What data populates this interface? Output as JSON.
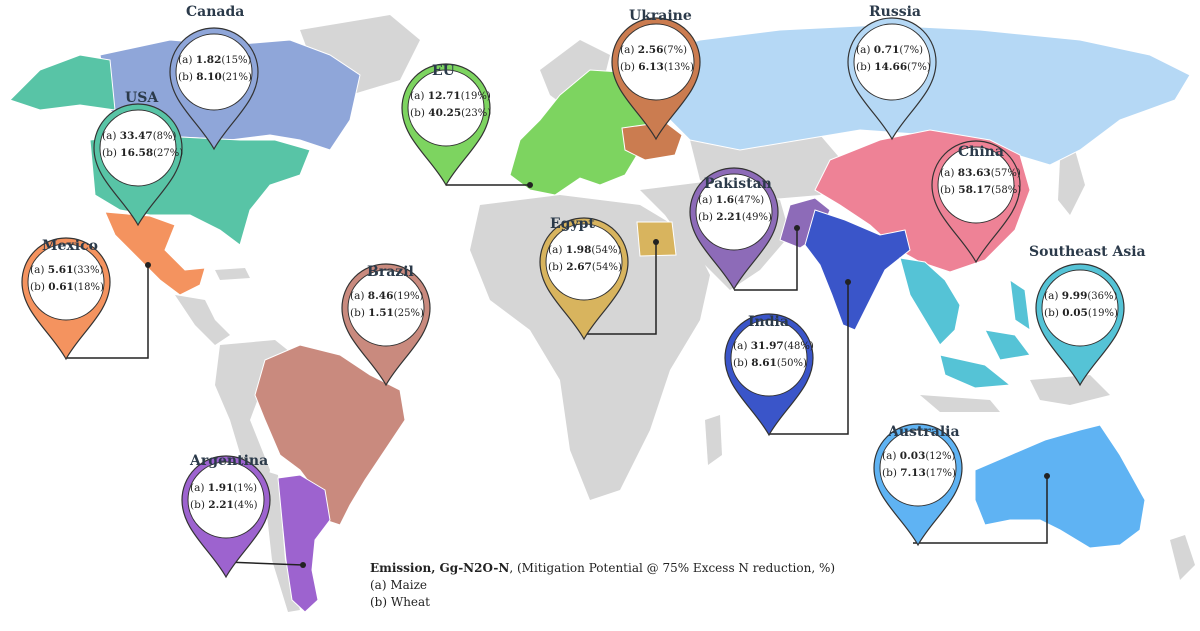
{
  "legend": {
    "title": "Emission, Gg-N2O-N",
    "subtitle": ", (Mitigation Potential @ 75% Excess N reduction, %)",
    "items": [
      "(a) Maize",
      "(b) Wheat"
    ]
  },
  "countries": [
    {
      "name": "Canada",
      "a_value": "1.82",
      "a_pct": "(15%)",
      "b_value": "8.10",
      "b_pct": "(21%)",
      "color": "#8fa6d9"
    },
    {
      "name": "USA",
      "a_value": "33.47",
      "a_pct": "(8%)",
      "b_value": "16.58",
      "b_pct": "(27%)",
      "color": "#58c4a6"
    },
    {
      "name": "Mexico",
      "a_value": "5.61",
      "a_pct": "(33%)",
      "b_value": "0.61",
      "b_pct": "(18%)",
      "color": "#f4935f"
    },
    {
      "name": "Brazil",
      "a_value": "8.46",
      "a_pct": "(19%)",
      "b_value": "1.51",
      "b_pct": "(25%)",
      "color": "#c98a7e"
    },
    {
      "name": "Argentina",
      "a_value": "1.91",
      "a_pct": "(1%)",
      "b_value": "2.21",
      "b_pct": "(4%)",
      "color": "#9d63cf"
    },
    {
      "name": "EU",
      "a_value": "12.71",
      "a_pct": "(19%)",
      "b_value": "40.25",
      "b_pct": "(23%)",
      "color": "#7dd460"
    },
    {
      "name": "Ukraine",
      "a_value": "2.56",
      "a_pct": "(7%)",
      "b_value": "6.13",
      "b_pct": "(13%)",
      "color": "#cb7c50"
    },
    {
      "name": "Egypt",
      "a_value": "1.98",
      "a_pct": "(54%)",
      "b_value": "2.67",
      "b_pct": "(54%)",
      "color": "#d8b45e"
    },
    {
      "name": "Pakistan",
      "a_value": "1.6",
      "a_pct": "(47%)",
      "b_value": "2.21",
      "b_pct": "(49%)",
      "color": "#8d6bb8"
    },
    {
      "name": "India",
      "a_value": "31.97",
      "a_pct": "(48%)",
      "b_value": "8.61",
      "b_pct": "(50%)",
      "color": "#3a55c9"
    },
    {
      "name": "Russia",
      "a_value": "0.71",
      "a_pct": "(7%)",
      "b_value": "14.66",
      "b_pct": "(7%)",
      "color": "#b5d8f5"
    },
    {
      "name": "China",
      "a_value": "83.63",
      "a_pct": "(57%)",
      "b_value": "58.17",
      "b_pct": "(58%)",
      "color": "#ee8296"
    },
    {
      "name": "Southeast Asia",
      "a_value": "9.99",
      "a_pct": "(36%)",
      "b_value": "0.05",
      "b_pct": "(19%)",
      "color": "#55c3d6"
    },
    {
      "name": "Australia",
      "a_value": "0.03",
      "a_pct": "(12%)",
      "b_value": "7.13",
      "b_pct": "(17%)",
      "color": "#5fb3f3"
    }
  ]
}
